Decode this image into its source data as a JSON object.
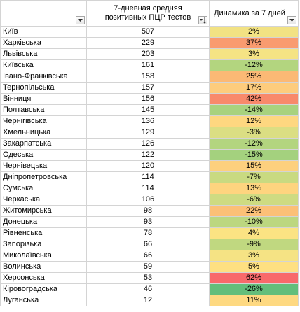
{
  "headers": {
    "region": "",
    "avg": "7-дневная средняя позитивных ПЦР тестов",
    "dyn": "Динамика за 7 дней"
  },
  "rows": [
    {
      "region": "Київ",
      "avg": "507",
      "dyn": "2%",
      "color": "#f2e283"
    },
    {
      "region": "Харківська",
      "avg": "229",
      "dyn": "37%",
      "color": "#f99b6f"
    },
    {
      "region": "Львівська",
      "avg": "203",
      "dyn": "3%",
      "color": "#f5e384"
    },
    {
      "region": "Київська",
      "avg": "161",
      "dyn": "-12%",
      "color": "#b3d57f"
    },
    {
      "region": "Івано-Франківська",
      "avg": "158",
      "dyn": "25%",
      "color": "#fbb975"
    },
    {
      "region": "Тернопільська",
      "avg": "157",
      "dyn": "17%",
      "color": "#fdcc7d"
    },
    {
      "region": "Вінниця",
      "avg": "156",
      "dyn": "42%",
      "color": "#f8896b"
    },
    {
      "region": "Полтавська",
      "avg": "145",
      "dyn": "-14%",
      "color": "#a8d27e"
    },
    {
      "region": "Чернігівська",
      "avg": "136",
      "dyn": "12%",
      "color": "#fed780"
    },
    {
      "region": "Хмельницька",
      "avg": "129",
      "dyn": "-3%",
      "color": "#dbde83"
    },
    {
      "region": "Закарпатська",
      "avg": "126",
      "dyn": "-12%",
      "color": "#b3d57f"
    },
    {
      "region": "Одеська",
      "avg": "122",
      "dyn": "-15%",
      "color": "#a4d17e"
    },
    {
      "region": "Чернівецька",
      "avg": "120",
      "dyn": "15%",
      "color": "#fdd07e"
    },
    {
      "region": "Дніпропетровська",
      "avg": "114",
      "dyn": "-7%",
      "color": "#c9da81"
    },
    {
      "region": "Сумська",
      "avg": "114",
      "dyn": "13%",
      "color": "#fed47f"
    },
    {
      "region": "Черкаська",
      "avg": "106",
      "dyn": "-6%",
      "color": "#cedb82"
    },
    {
      "region": "Житомирська",
      "avg": "98",
      "dyn": "22%",
      "color": "#fcc077"
    },
    {
      "region": "Донецька",
      "avg": "93",
      "dyn": "-10%",
      "color": "#bcd780"
    },
    {
      "region": "Рівненська",
      "avg": "78",
      "dyn": "4%",
      "color": "#fbe383"
    },
    {
      "region": "Запорізька",
      "avg": "66",
      "dyn": "-9%",
      "color": "#c0d880"
    },
    {
      "region": "Миколаївська",
      "avg": "66",
      "dyn": "3%",
      "color": "#f5e384"
    },
    {
      "region": "Волинська",
      "avg": "59",
      "dyn": "5%",
      "color": "#fee082"
    },
    {
      "region": "Херсонська",
      "avg": "53",
      "dyn": "62%",
      "color": "#f8696b"
    },
    {
      "region": "Кіровоградська",
      "avg": "46",
      "dyn": "-26%",
      "color": "#63be7b"
    },
    {
      "region": "Луганська",
      "avg": "12",
      "dyn": "11%",
      "color": "#fed981"
    }
  ],
  "icons": {
    "region_filter": "dropdown-arrow-icon",
    "avg_filter": "sort-descending-icon",
    "dyn_filter": "dropdown-arrow-icon"
  }
}
